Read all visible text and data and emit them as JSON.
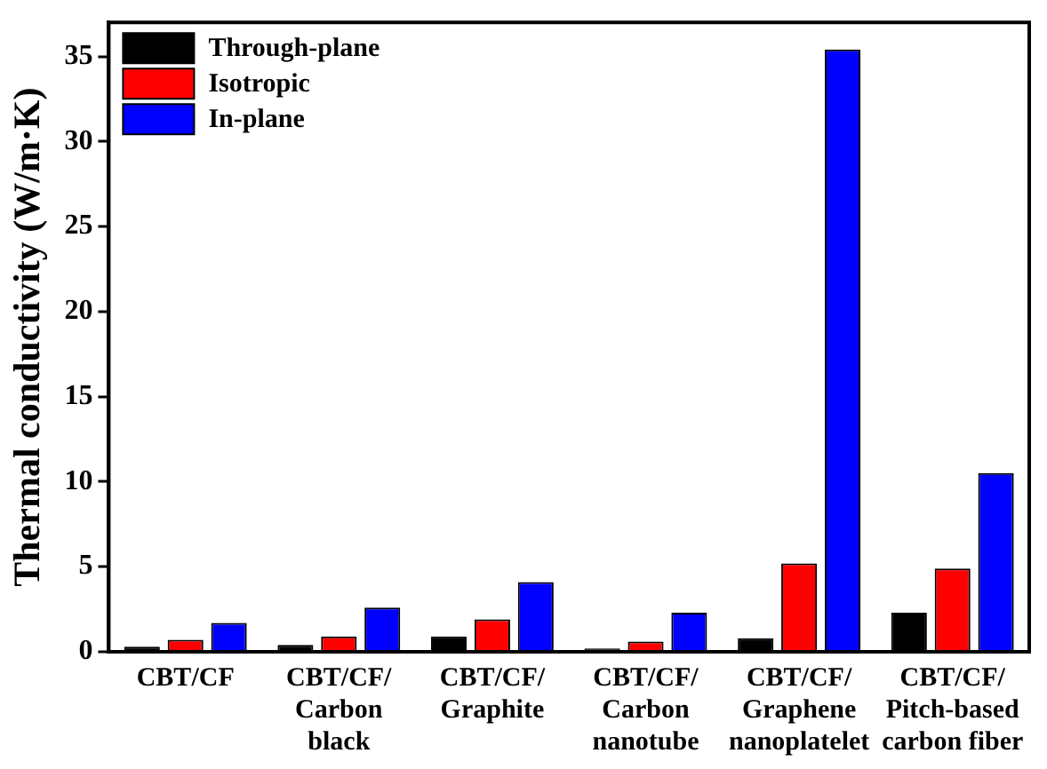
{
  "chart_data": {
    "type": "bar",
    "ylabel": "Thermal conductivity (W/m·K)",
    "categories": [
      "CBT/CF",
      "CBT/CF/\nCarbon\nblack",
      "CBT/CF/\nGraphite",
      "CBT/CF/\nCarbon\nnanotube",
      "CBT/CF/\nGraphene\nnanoplatelet",
      "CBT/CF/\nPitch-based\ncarbon fiber"
    ],
    "series": [
      {
        "name": "Through-plane",
        "color": "#000000",
        "values": [
          0.3,
          0.4,
          0.9,
          0.2,
          0.8,
          2.3
        ]
      },
      {
        "name": "Isotropic",
        "color": "#ff0000",
        "values": [
          0.7,
          0.9,
          1.9,
          0.6,
          5.2,
          4.9
        ]
      },
      {
        "name": "In-plane",
        "color": "#0000ff",
        "values": [
          1.7,
          2.6,
          4.1,
          2.3,
          35.4,
          10.5
        ]
      }
    ],
    "ylim": [
      0,
      37
    ],
    "yticks": [
      0,
      5,
      10,
      15,
      20,
      25,
      30,
      35
    ],
    "grid": false,
    "legend": "top left"
  }
}
